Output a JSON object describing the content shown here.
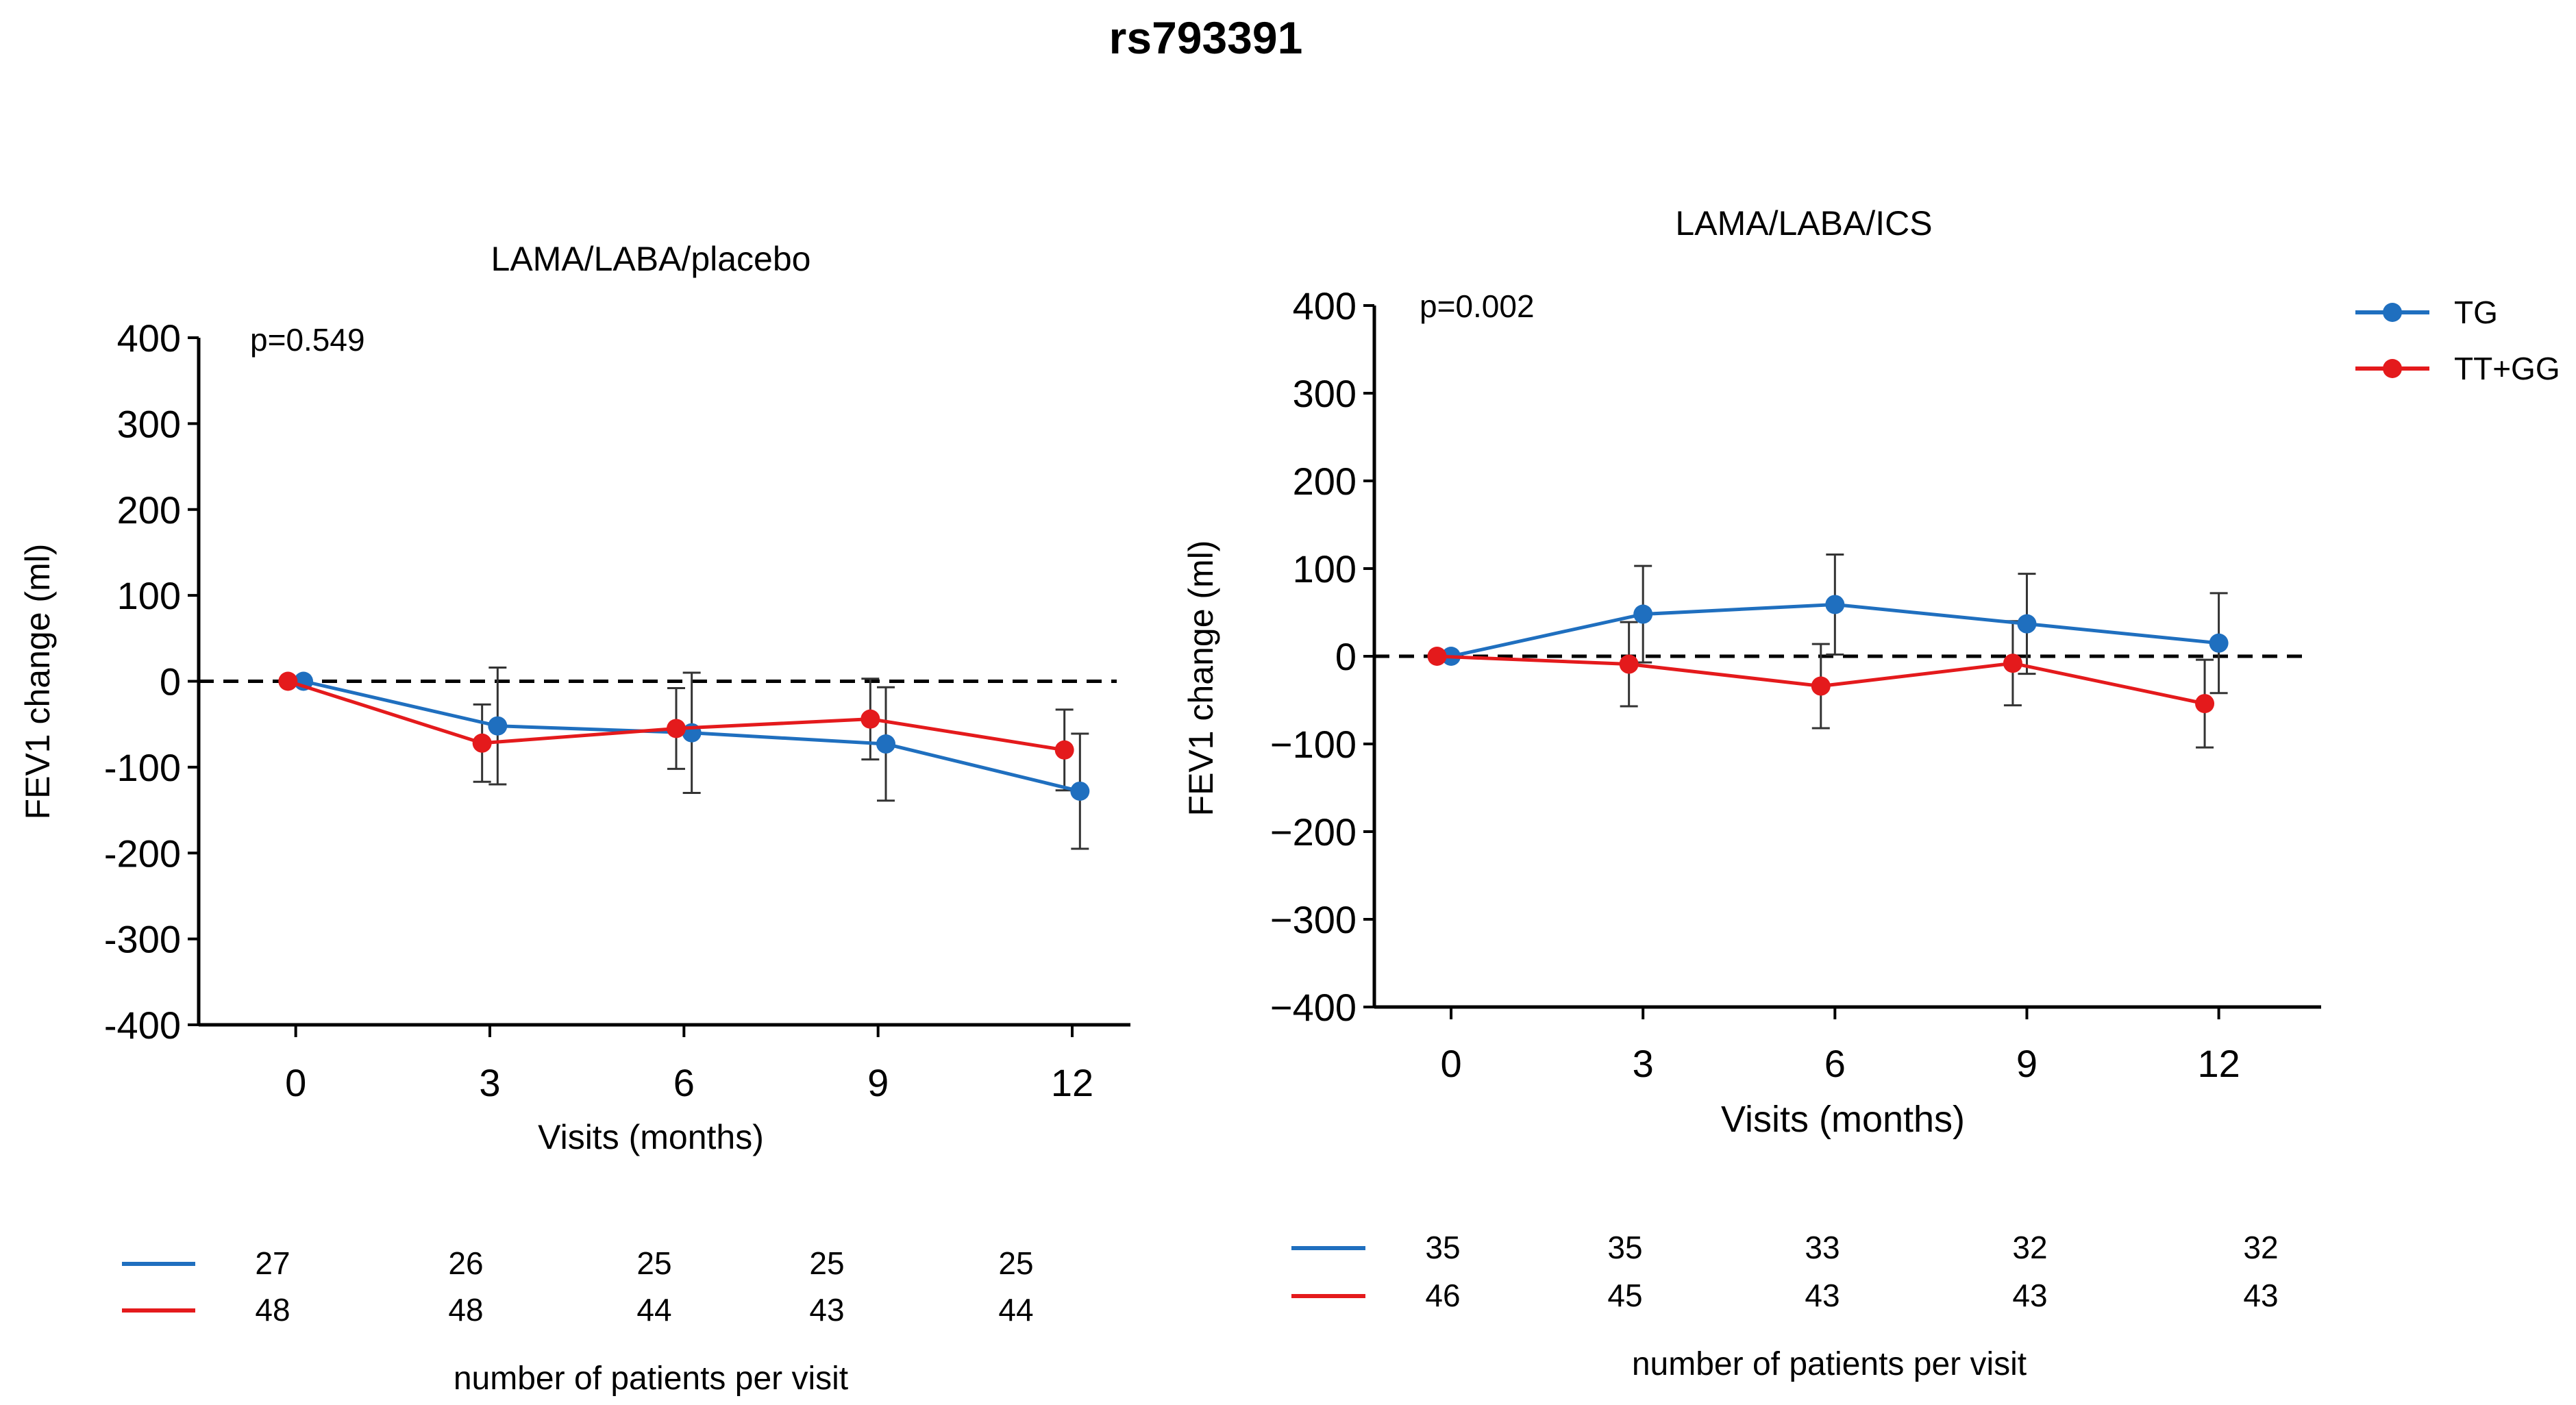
{
  "figure_title": "rs793391",
  "chart_data": [
    {
      "type": "line",
      "title": "LAMA/LABA/placebo",
      "p_value": "p=0.549",
      "xlabel": "Visits (months)",
      "ylabel": "FEV1 change (ml)",
      "x": [
        0,
        3,
        6,
        9,
        12
      ],
      "x_tick_labels": [
        "0",
        "3",
        "6",
        "9",
        "12"
      ],
      "xlim": [
        -1.5,
        12.9
      ],
      "ylim": [
        -400,
        400
      ],
      "y_ticks": [
        400,
        300,
        200,
        100,
        0,
        -100,
        -200,
        -300,
        -400
      ],
      "y_tick_labels": [
        "400",
        "300",
        "200",
        "100",
        "0",
        "-100",
        "-200",
        "-300",
        "-400"
      ],
      "reference_line": 0,
      "legend": "none",
      "series": [
        {
          "name": "TG",
          "color": "#1f6fbf",
          "x_offset": 0.12,
          "values": [
            0,
            -52,
            -60,
            -73,
            -128
          ],
          "error": [
            0,
            68,
            70,
            66,
            67
          ]
        },
        {
          "name": "TT+GG",
          "color": "#e41a1c",
          "x_offset": -0.12,
          "values": [
            0,
            -72,
            -55,
            -44,
            -80
          ],
          "error": [
            0,
            45,
            47,
            47,
            47
          ]
        }
      ],
      "patients": {
        "title": "number of patients per visit",
        "rows": [
          {
            "series": "TG",
            "color": "#1f6fbf",
            "counts": [
              "27",
              "26",
              "25",
              "25",
              "25"
            ]
          },
          {
            "series": "TT+GG",
            "color": "#e41a1c",
            "counts": [
              "48",
              "48",
              "44",
              "43",
              "44"
            ]
          }
        ]
      }
    },
    {
      "type": "line",
      "title": "LAMA/LABA/ICS",
      "p_value": "p=0.002",
      "xlabel": "Visits (months)",
      "ylabel": "FEV1 change (ml)",
      "x": [
        0,
        3,
        6,
        9,
        12
      ],
      "x_tick_labels": [
        "0",
        "3",
        "6",
        "9",
        "12"
      ],
      "xlim": [
        -1.2,
        13.6
      ],
      "ylim": [
        -400,
        400
      ],
      "y_ticks": [
        400,
        300,
        200,
        100,
        0,
        -100,
        -200,
        -300,
        -400
      ],
      "y_tick_labels": [
        "400",
        "300",
        "200",
        "100",
        "0",
        "−100",
        "−200",
        "−300",
        "−400"
      ],
      "reference_line": 0,
      "legend": "top-right",
      "series": [
        {
          "name": "TG",
          "color": "#1f6fbf",
          "x_offset": 0.0,
          "values": [
            0,
            48,
            59,
            37,
            15
          ],
          "error": [
            0,
            55,
            57,
            57,
            57
          ]
        },
        {
          "name": "TT+GG",
          "color": "#e41a1c",
          "x_offset": -0.22,
          "values": [
            0,
            -9,
            -34,
            -8,
            -54
          ],
          "error": [
            0,
            48,
            48,
            48,
            50
          ]
        }
      ],
      "patients": {
        "title": "number of patients per visit",
        "rows": [
          {
            "series": "TG",
            "color": "#1f6fbf",
            "counts": [
              "35",
              "35",
              "33",
              "32",
              "32"
            ]
          },
          {
            "series": "TT+GG",
            "color": "#e41a1c",
            "counts": [
              "46",
              "45",
              "43",
              "43",
              "43"
            ]
          }
        ]
      }
    }
  ]
}
